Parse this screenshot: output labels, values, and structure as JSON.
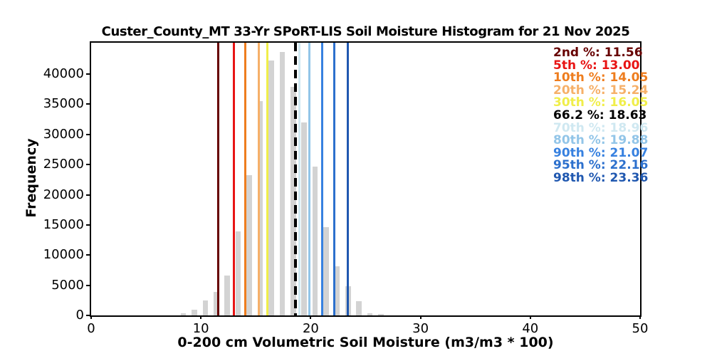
{
  "title": "Custer_County_MT 33-Yr SPoRT-LIS Soil Moisture Histogram for 21 Nov 2025",
  "chart_data": {
    "type": "bar",
    "subtype": "histogram",
    "title": "Custer_County_MT 33-Yr SPoRT-LIS Soil Moisture Histogram for 21 Nov 2025",
    "xlabel": "0-200 cm Volumetric Soil Moisture (m3/m3 * 100)",
    "ylabel": "Frequency",
    "xlim": [
      0,
      50
    ],
    "ylim": [
      0,
      45180
    ],
    "x_ticks": [
      0,
      10,
      20,
      30,
      40,
      50
    ],
    "y_ticks": [
      0,
      5000,
      10000,
      15000,
      20000,
      25000,
      30000,
      35000,
      40000
    ],
    "grid": false,
    "legend_position": "upper-right-inside-axes",
    "bar_color": "#d3d3d3",
    "bin_width": 1.0,
    "bar_draw_width": 0.5,
    "bin_centers": [
      8.4,
      9.4,
      10.4,
      11.4,
      12.4,
      13.4,
      14.4,
      15.4,
      16.4,
      17.4,
      18.4,
      19.4,
      20.4,
      21.4,
      22.4,
      23.4,
      24.4,
      25.4,
      26.4
    ],
    "counts": [
      400,
      1000,
      2450,
      3950,
      6650,
      13900,
      23200,
      35500,
      42200,
      43600,
      37900,
      32000,
      24700,
      14600,
      8200,
      4900,
      2350,
      400,
      250
    ],
    "percentile_lines": [
      {
        "label": "2nd %",
        "value": 11.56,
        "display": "11.56",
        "color": "#670000",
        "style": "solid"
      },
      {
        "label": "5th %",
        "value": 13.0,
        "display": "13.00",
        "color": "#e81414",
        "style": "solid"
      },
      {
        "label": "10th %",
        "value": 14.05,
        "display": "14.05",
        "color": "#ee7d1e",
        "style": "solid"
      },
      {
        "label": "20th %",
        "value": 15.24,
        "display": "15.24",
        "color": "#f6b069",
        "style": "solid"
      },
      {
        "label": "30th %",
        "value": 16.05,
        "display": "16.05",
        "color": "#f0ee4a",
        "style": "solid"
      },
      {
        "label": "66.2 %",
        "value": 18.63,
        "display": "18.63",
        "color": "#000000",
        "style": "dashed"
      },
      {
        "label": "70th %",
        "value": 18.96,
        "display": "18.96",
        "color": "#cfe8f1",
        "style": "solid"
      },
      {
        "label": "80th %",
        "value": 19.88,
        "display": "19.88",
        "color": "#92c5e8",
        "style": "solid"
      },
      {
        "label": "90th %",
        "value": 21.07,
        "display": "21.07",
        "color": "#3781e0",
        "style": "solid"
      },
      {
        "label": "95th %",
        "value": 22.16,
        "display": "22.16",
        "color": "#2c70cd",
        "style": "solid"
      },
      {
        "label": "98th %",
        "value": 23.36,
        "display": "23.36",
        "color": "#2058b0",
        "style": "solid"
      }
    ]
  }
}
